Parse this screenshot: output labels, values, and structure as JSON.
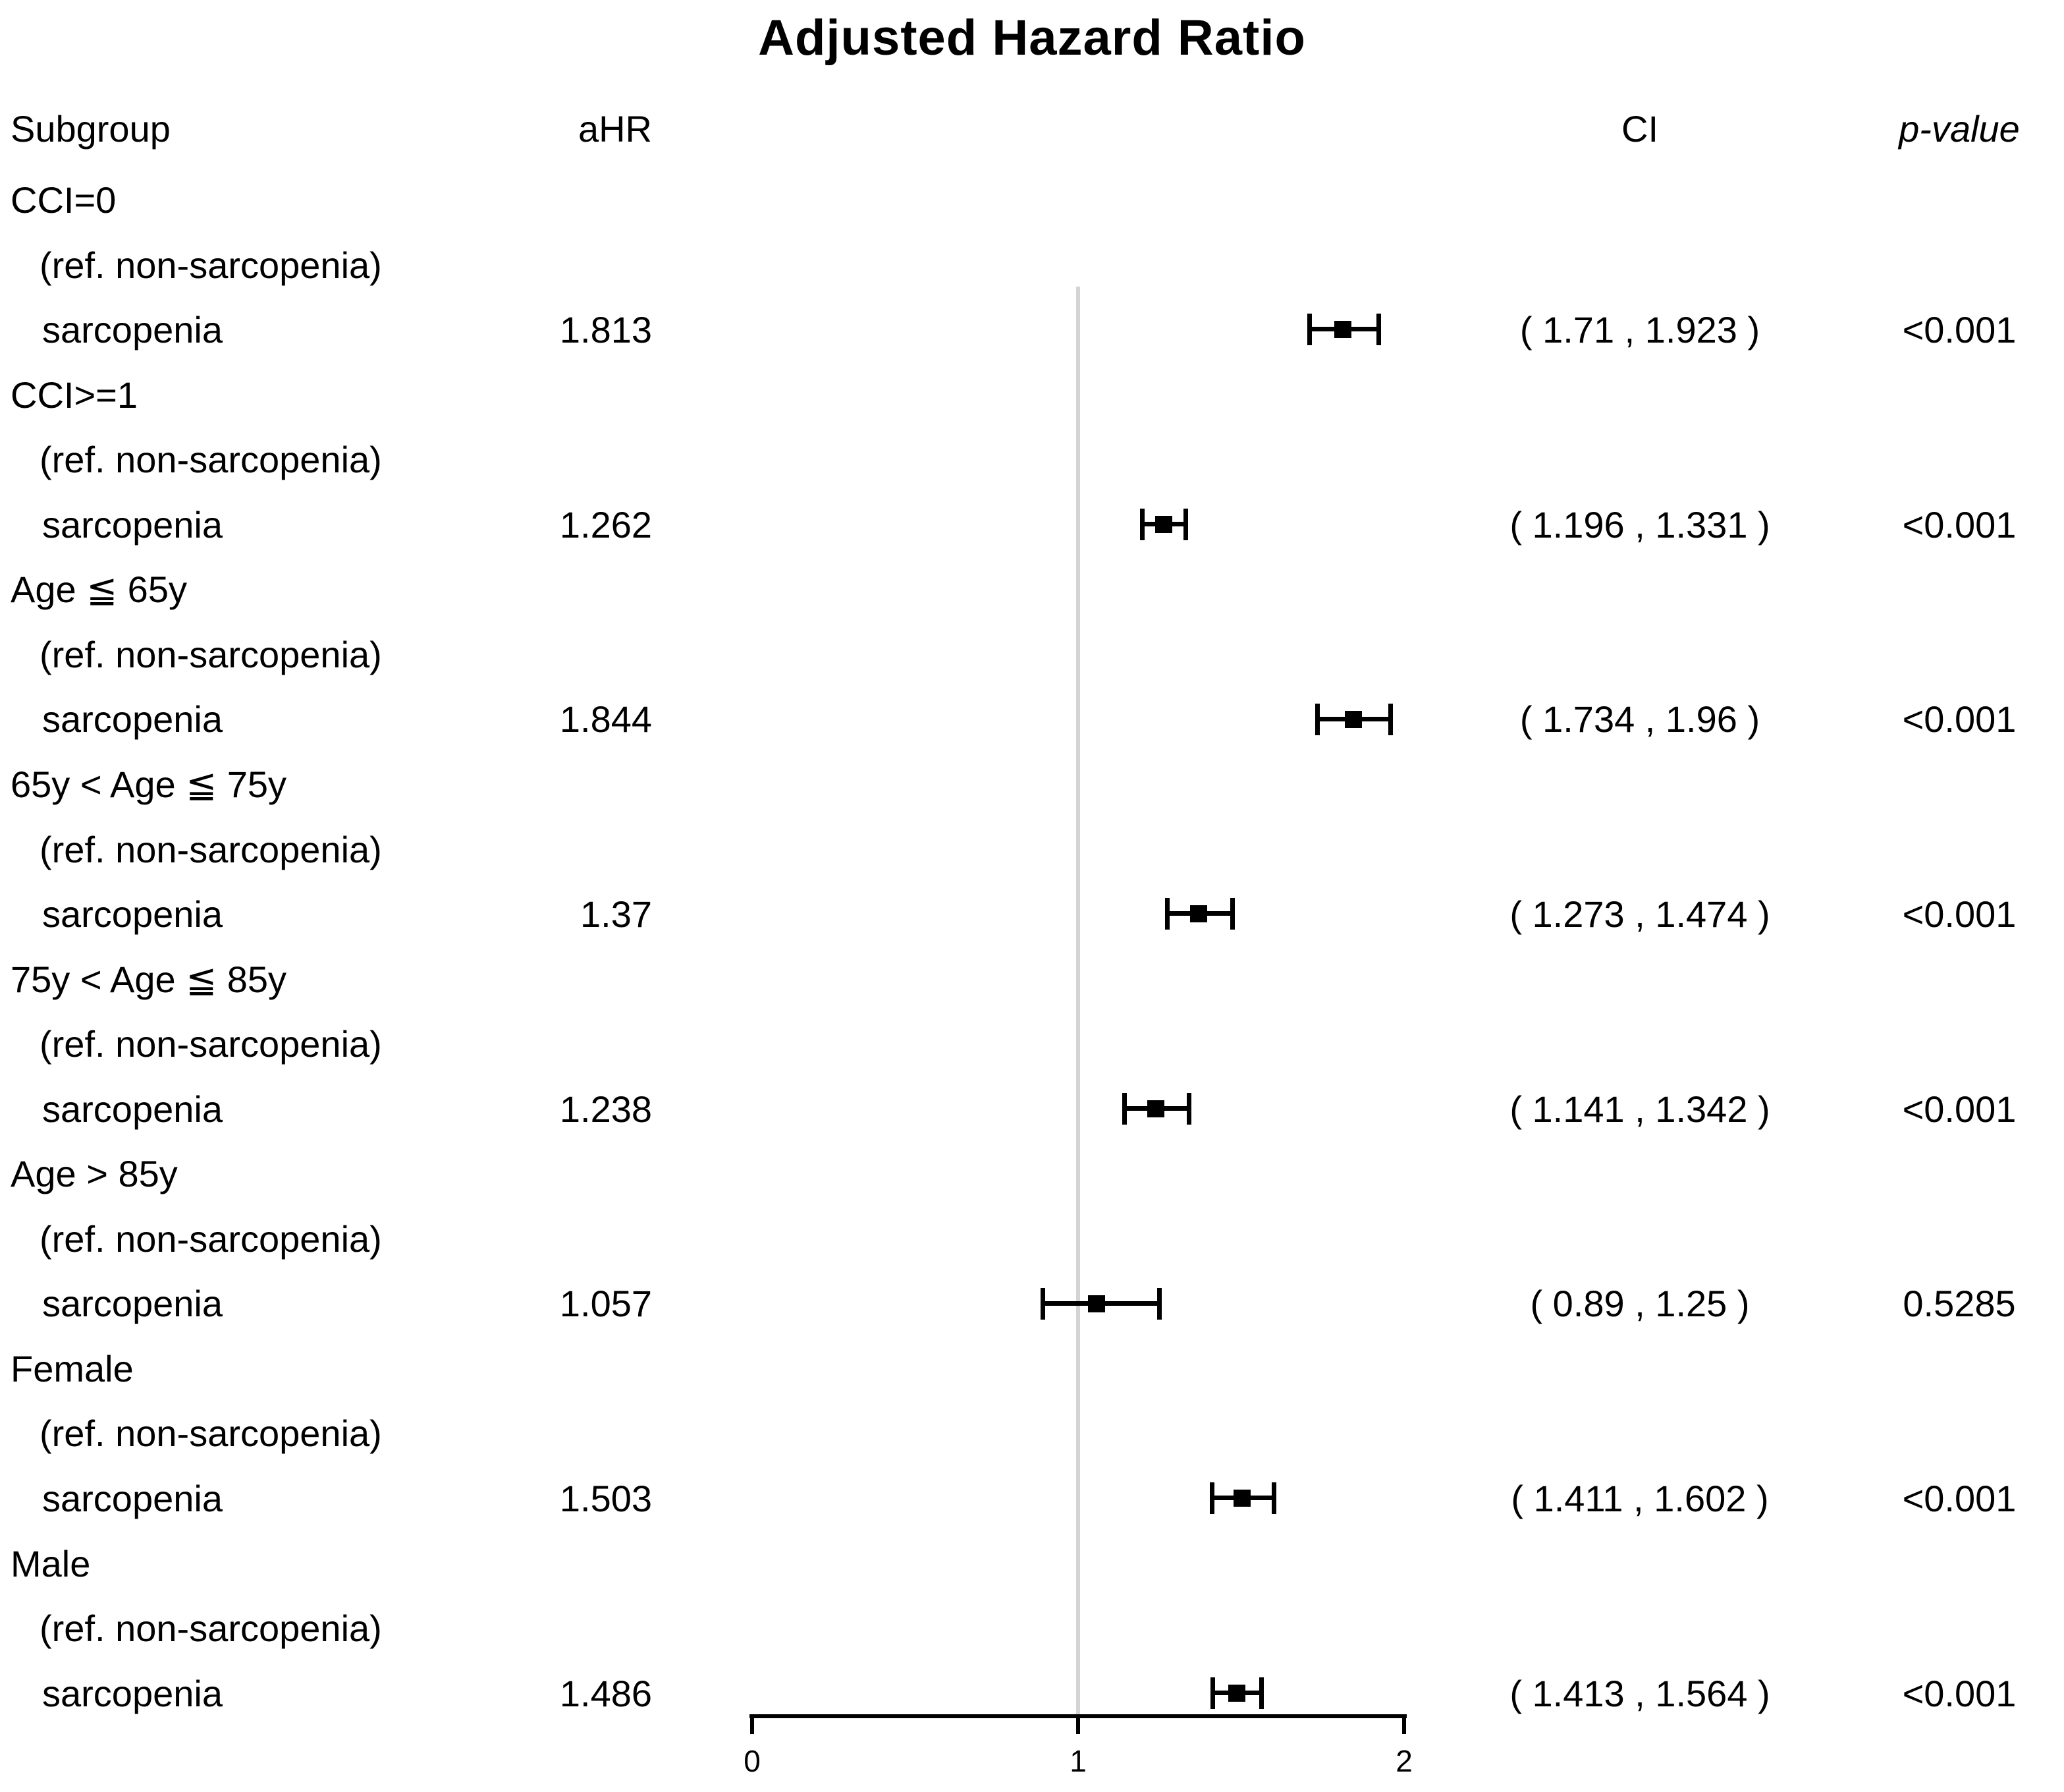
{
  "title": "Adjusted Hazard Ratio",
  "columns": {
    "subgroup": "Subgroup",
    "ahr": "aHR",
    "ci": "CI",
    "pvalue": "p-value"
  },
  "colors": {
    "text": "#000000",
    "reference_line": "#d4d4d4",
    "marker": "#000000"
  },
  "chart_data": {
    "type": "scatter",
    "variant": "forest-plot",
    "title": "Adjusted Hazard Ratio",
    "xlabel": "",
    "x_axis": {
      "range": [
        0,
        2
      ],
      "ticks": [
        0,
        1,
        2
      ],
      "reference_line": 1,
      "grid": false
    },
    "rows": [
      {
        "group": "CCI=0",
        "ref_label": "(ref. non-sarcopenia)",
        "label": "sarcopenia",
        "ahr": 1.813,
        "ahr_text": "1.813",
        "ci_low": 1.71,
        "ci_high": 1.923,
        "ci_text": "( 1.71 , 1.923 )",
        "p_text": "<0.001"
      },
      {
        "group": "CCI>=1",
        "ref_label": "(ref. non-sarcopenia)",
        "label": "sarcopenia",
        "ahr": 1.262,
        "ahr_text": "1.262",
        "ci_low": 1.196,
        "ci_high": 1.331,
        "ci_text": "( 1.196 , 1.331 )",
        "p_text": "<0.001"
      },
      {
        "group": "Age ≦ 65y",
        "ref_label": "(ref. non-sarcopenia)",
        "label": "sarcopenia",
        "ahr": 1.844,
        "ahr_text": "1.844",
        "ci_low": 1.734,
        "ci_high": 1.96,
        "ci_text": "( 1.734 , 1.96 )",
        "p_text": "<0.001"
      },
      {
        "group": "65y < Age ≦ 75y",
        "ref_label": "(ref. non-sarcopenia)",
        "label": "sarcopenia",
        "ahr": 1.37,
        "ahr_text": "1.37",
        "ci_low": 1.273,
        "ci_high": 1.474,
        "ci_text": "( 1.273 , 1.474 )",
        "p_text": "<0.001"
      },
      {
        "group": "75y < Age ≦ 85y",
        "ref_label": "(ref. non-sarcopenia)",
        "label": "sarcopenia",
        "ahr": 1.238,
        "ahr_text": "1.238",
        "ci_low": 1.141,
        "ci_high": 1.342,
        "ci_text": "( 1.141 , 1.342 )",
        "p_text": "<0.001"
      },
      {
        "group": "Age > 85y",
        "ref_label": "(ref. non-sarcopenia)",
        "label": "sarcopenia",
        "ahr": 1.057,
        "ahr_text": "1.057",
        "ci_low": 0.89,
        "ci_high": 1.25,
        "ci_text": "( 0.89 , 1.25 )",
        "p_text": "0.5285"
      },
      {
        "group": "Female",
        "ref_label": "(ref. non-sarcopenia)",
        "label": "sarcopenia",
        "ahr": 1.503,
        "ahr_text": "1.503",
        "ci_low": 1.411,
        "ci_high": 1.602,
        "ci_text": "( 1.411 , 1.602 )",
        "p_text": "<0.001"
      },
      {
        "group": "Male",
        "ref_label": "(ref. non-sarcopenia)",
        "label": "sarcopenia",
        "ahr": 1.486,
        "ahr_text": "1.486",
        "ci_low": 1.413,
        "ci_high": 1.564,
        "ci_text": "( 1.413 , 1.564 )",
        "p_text": "<0.001"
      }
    ]
  }
}
